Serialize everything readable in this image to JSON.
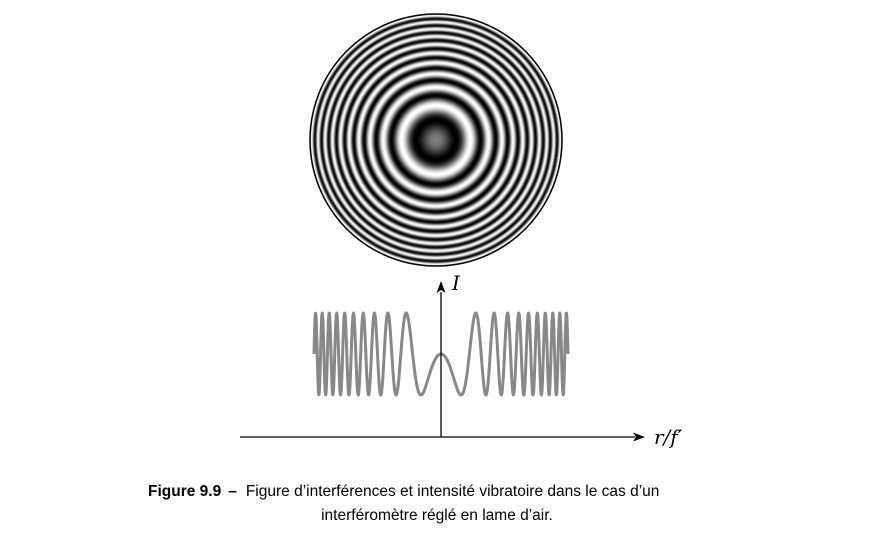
{
  "figure": {
    "rings": {
      "count": 10,
      "center_intensity": 0.5
    },
    "plot": {
      "y_axis_label": "I",
      "x_axis_label": "r/f′",
      "curve_color": "#888888",
      "axis_color": "#000000"
    }
  },
  "caption": {
    "number": "Figure 9.9",
    "separator": "–",
    "text_line1": "Figure d’interférences et intensité vibratoire dans le cas d’un",
    "text_line2": "interféromètre réglé en lame d’air."
  }
}
